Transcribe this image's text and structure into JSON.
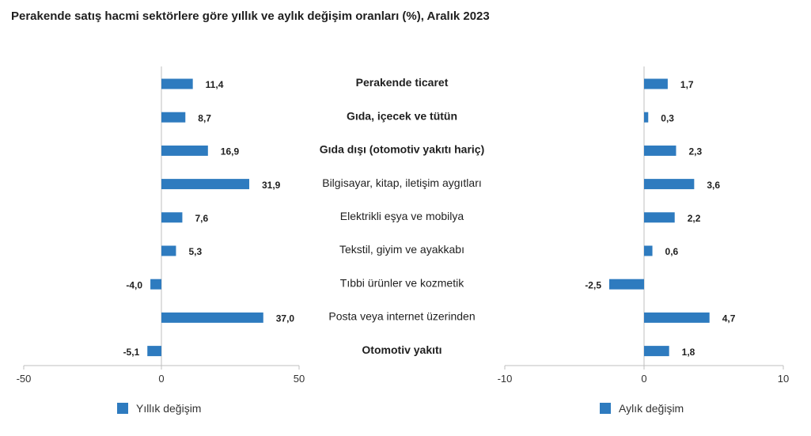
{
  "title": "Perakende satış hacmi sektörlere göre yıllık ve aylık değişim oranları (%), Aralık 2023",
  "colors": {
    "bar": "#2e7bbf",
    "axis": "#bfbfbf",
    "text": "#1f1f1f"
  },
  "chart_data": [
    {
      "type": "bar",
      "orientation": "horizontal",
      "categories": [
        "Perakende ticaret",
        "Gıda, içecek ve tütün",
        "Gıda dışı (otomotiv yakıtı hariç)",
        "Bilgisayar, kitap, iletişim aygıtları",
        "Elektrikli eşya ve mobilya",
        "Tekstil, giyim ve ayakkabı",
        "Tıbbi ürünler ve kozmetik",
        "Posta veya internet üzerinden",
        "Otomotiv yakıtı"
      ],
      "bold_categories": [
        true,
        true,
        true,
        false,
        false,
        false,
        false,
        false,
        true
      ],
      "series": [
        {
          "name": "Yıllık değişim",
          "values": [
            11.4,
            8.7,
            16.9,
            31.9,
            7.6,
            5.3,
            -4.0,
            37.0,
            -5.1
          ],
          "labels": [
            "11,4",
            "8,7",
            "16,9",
            "31,9",
            "7,6",
            "5,3",
            "-4,0",
            "37,0",
            "-5,1"
          ]
        }
      ],
      "xlim": [
        -50,
        50
      ],
      "xticks": [
        -50,
        0,
        50
      ],
      "xtick_labels": [
        "-50",
        "0",
        "50"
      ],
      "grid": false,
      "legend": "bottom-left"
    },
    {
      "type": "bar",
      "orientation": "horizontal",
      "series": [
        {
          "name": "Aylık değişim",
          "values": [
            1.7,
            0.3,
            2.3,
            3.6,
            2.2,
            0.6,
            -2.5,
            4.7,
            1.8
          ],
          "labels": [
            "1,7",
            "0,3",
            "2,3",
            "3,6",
            "2,2",
            "0,6",
            "-2,5",
            "4,7",
            "1,8"
          ]
        }
      ],
      "xlim": [
        -10,
        10
      ],
      "xticks": [
        -10,
        0,
        10
      ],
      "xtick_labels": [
        "-10",
        "0",
        "10"
      ],
      "grid": false,
      "legend": "bottom-left"
    }
  ]
}
